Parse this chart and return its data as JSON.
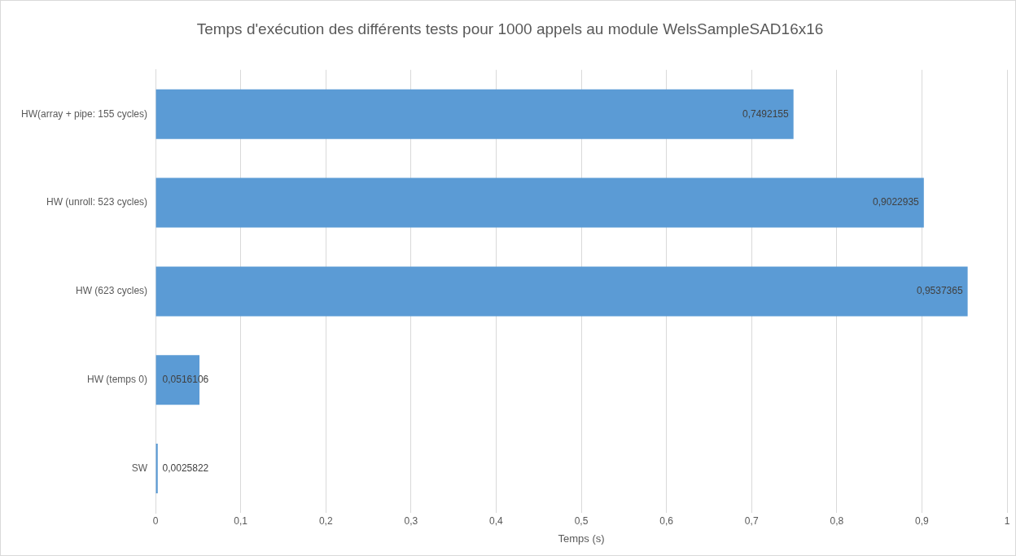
{
  "chart_data": {
    "type": "bar",
    "orientation": "horizontal",
    "title": "Temps d'exécution des différents tests pour 1000 appels au module WelsSampleSAD16x16",
    "xlabel": "Temps (s)",
    "categories": [
      "HW(array + pipe: 155 cycles)",
      "HW (unroll: 523 cycles)",
      "HW (623 cycles)",
      "HW (temps 0)",
      "SW"
    ],
    "values": [
      0.7492155,
      0.9022935,
      0.9537365,
      0.0516106,
      0.0025822
    ],
    "value_labels": [
      "0,7492155",
      "0,9022935",
      "0,9537365",
      "0,0516106",
      "0,0025822"
    ],
    "color": "#5b9bd5",
    "xlim": [
      0,
      1
    ],
    "xticks": [
      0,
      {
        "value": 0.1,
        "label": "0,1"
      },
      {
        "value": 0.2,
        "label": "0,2"
      },
      {
        "value": 0.3,
        "label": "0,3"
      },
      {
        "value": 0.4,
        "label": "0,4"
      },
      {
        "value": 0.5,
        "label": "0,5"
      },
      {
        "value": 0.6,
        "label": "0,6"
      },
      {
        "value": 0.7,
        "label": "0,7"
      },
      {
        "value": 0.8,
        "label": "0,8"
      },
      {
        "value": 0.9,
        "label": "0,9"
      },
      1
    ],
    "grid": "x",
    "legend": false
  }
}
